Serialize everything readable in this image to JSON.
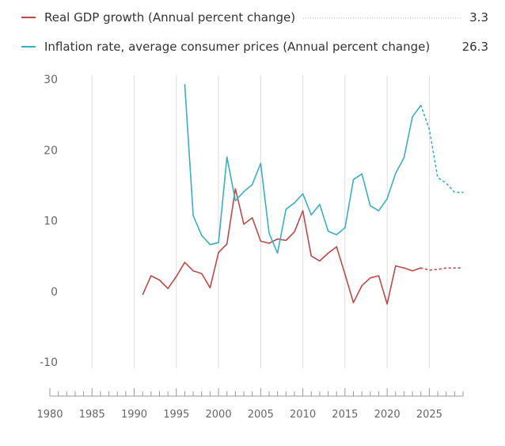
{
  "chart_data": {
    "type": "line",
    "x_range": [
      1980,
      2029
    ],
    "ylim": [
      -10,
      30
    ],
    "y_ticks": [
      "30",
      "20",
      "10",
      "0",
      "-10"
    ],
    "y_tick_values": [
      30,
      20,
      10,
      0,
      -10
    ],
    "x_ticks": [
      "1980",
      "1985",
      "1990",
      "1995",
      "2000",
      "2005",
      "2010",
      "2015",
      "2020",
      "2025"
    ],
    "x_tick_values": [
      1980,
      1985,
      1990,
      1995,
      2000,
      2005,
      2010,
      2015,
      2020,
      2025
    ],
    "grid": "vertical",
    "legend_position": "top",
    "forecast_from": 2024,
    "series": [
      {
        "name": "Real GDP growth (Annual percent change)",
        "latest_value": "3.3",
        "color": "#b84a4a",
        "x": [
          1991,
          1992,
          1993,
          1994,
          1995,
          1996,
          1997,
          1998,
          1999,
          2000,
          2001,
          2002,
          2003,
          2004,
          2005,
          2006,
          2007,
          2008,
          2009,
          2010,
          2011,
          2012,
          2013,
          2014,
          2015,
          2016,
          2017,
          2018,
          2019,
          2020,
          2021,
          2022,
          2023,
          2024,
          2025,
          2026,
          2027,
          2028,
          2029
        ],
        "y": [
          -0.5,
          2.2,
          1.6,
          0.4,
          2.1,
          4.1,
          2.9,
          2.5,
          0.5,
          5.5,
          6.7,
          14.5,
          9.5,
          10.4,
          7.1,
          6.8,
          7.4,
          7.2,
          8.4,
          11.4,
          5.0,
          4.3,
          5.4,
          6.3,
          2.4,
          -1.6,
          0.8,
          1.9,
          2.2,
          -1.8,
          3.6,
          3.3,
          2.9,
          3.3,
          3.0,
          3.1,
          3.3,
          3.3,
          3.3
        ]
      },
      {
        "name": "Inflation rate, average consumer prices (Annual percent change)",
        "latest_value": "26.3",
        "color": "#3eadc0",
        "x": [
          1996,
          1997,
          1998,
          1999,
          2000,
          2001,
          2002,
          2003,
          2004,
          2005,
          2006,
          2007,
          2008,
          2009,
          2010,
          2011,
          2012,
          2013,
          2014,
          2015,
          2016,
          2017,
          2018,
          2019,
          2020,
          2021,
          2022,
          2023,
          2024,
          2025,
          2026,
          2027,
          2028,
          2029
        ],
        "y": [
          29.3,
          10.7,
          7.9,
          6.6,
          6.9,
          19.0,
          12.8,
          14.1,
          15.1,
          18.1,
          8.2,
          5.4,
          11.6,
          12.5,
          13.8,
          10.8,
          12.3,
          8.5,
          8.0,
          9.0,
          15.8,
          16.6,
          12.1,
          11.4,
          13.1,
          16.7,
          18.9,
          24.7,
          26.3,
          22.9,
          16.1,
          15.3,
          14.0,
          14.0
        ]
      }
    ]
  }
}
